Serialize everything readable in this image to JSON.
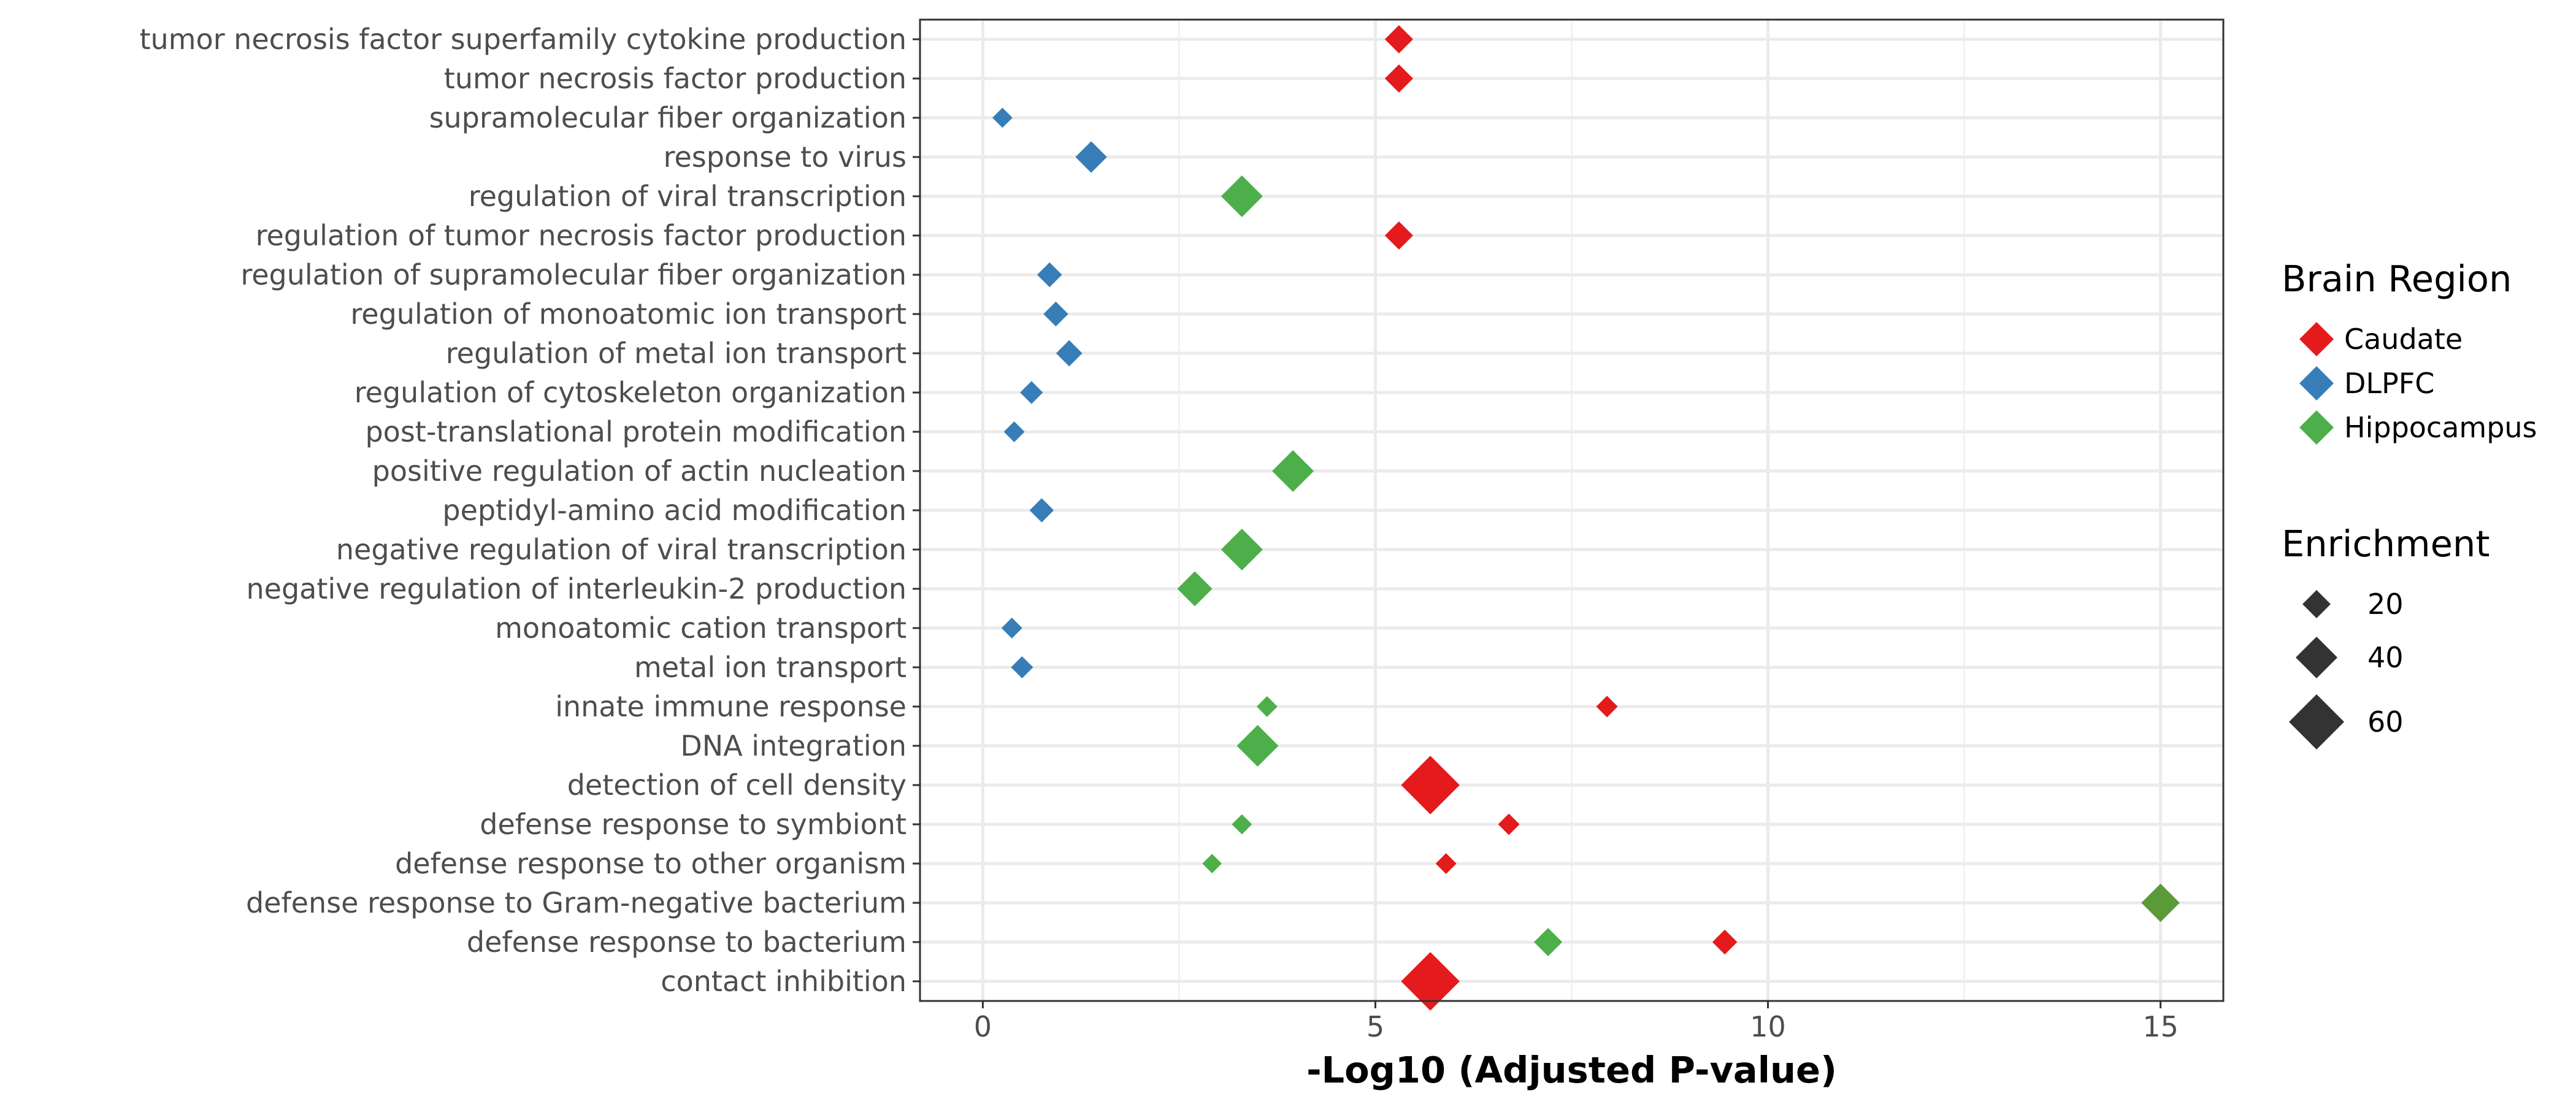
{
  "chart_data": {
    "type": "scatter",
    "title": "",
    "xlabel": "-Log10 (Adjusted P-value)",
    "ylabel": "",
    "xlim": [
      -0.8,
      15.8
    ],
    "xticks": [
      0,
      5,
      10,
      15
    ],
    "grid": true,
    "legend_position": "right",
    "categories": [
      "contact inhibition",
      "defense response to bacterium",
      "defense response to Gram-negative bacterium",
      "defense response to other organism",
      "defense response to symbiont",
      "detection of cell density",
      "DNA integration",
      "innate immune response",
      "metal ion transport",
      "monoatomic cation transport",
      "negative regulation of interleukin-2 production",
      "negative regulation of viral transcription",
      "peptidyl-amino acid modification",
      "positive regulation of actin nucleation",
      "post-translational protein modification",
      "regulation of cytoskeleton organization",
      "regulation of metal ion transport",
      "regulation of monoatomic ion transport",
      "regulation of supramolecular fiber organization",
      "regulation of tumor necrosis factor production",
      "regulation of viral transcription",
      "response to virus",
      "supramolecular fiber organization",
      "tumor necrosis factor production",
      "tumor necrosis factor superfamily cytokine production"
    ],
    "color_legend": {
      "title": "Brain Region",
      "entries": [
        {
          "label": "Caudate",
          "color": "#E41A1C"
        },
        {
          "label": "DLPFC",
          "color": "#377EB8"
        },
        {
          "label": "Hippocampus",
          "color": "#4DAF4A"
        }
      ]
    },
    "size_legend": {
      "title": "Enrichment",
      "entries": [
        {
          "label": "20",
          "value": 20
        },
        {
          "label": "40",
          "value": 40
        },
        {
          "label": "60",
          "value": 60
        }
      ]
    },
    "series": [
      {
        "name": "Caudate",
        "color": "#E41A1C",
        "points": [
          {
            "category": "tumor necrosis factor superfamily cytokine production",
            "x": 5.3,
            "enrichment": 20
          },
          {
            "category": "tumor necrosis factor production",
            "x": 5.3,
            "enrichment": 20
          },
          {
            "category": "regulation of tumor necrosis factor production",
            "x": 5.3,
            "enrichment": 20
          },
          {
            "category": "innate immune response",
            "x": 7.95,
            "enrichment": 10
          },
          {
            "category": "detection of cell density",
            "x": 5.7,
            "enrichment": 65
          },
          {
            "category": "defense response to symbiont",
            "x": 6.7,
            "enrichment": 10
          },
          {
            "category": "defense response to other organism",
            "x": 5.9,
            "enrichment": 9
          },
          {
            "category": "defense response to bacterium",
            "x": 9.45,
            "enrichment": 15
          },
          {
            "category": "contact inhibition",
            "x": 5.7,
            "enrichment": 65
          }
        ]
      },
      {
        "name": "DLPFC",
        "color": "#377EB8",
        "points": [
          {
            "category": "supramolecular fiber organization",
            "x": 0.25,
            "enrichment": 8
          },
          {
            "category": "response to virus",
            "x": 1.38,
            "enrichment": 25
          },
          {
            "category": "regulation of supramolecular fiber organization",
            "x": 0.85,
            "enrichment": 15
          },
          {
            "category": "regulation of monoatomic ion transport",
            "x": 0.93,
            "enrichment": 15
          },
          {
            "category": "regulation of metal ion transport",
            "x": 1.1,
            "enrichment": 17
          },
          {
            "category": "regulation of cytoskeleton organization",
            "x": 0.62,
            "enrichment": 12
          },
          {
            "category": "post-translational protein modification",
            "x": 0.4,
            "enrichment": 9
          },
          {
            "category": "peptidyl-amino acid modification",
            "x": 0.75,
            "enrichment": 14
          },
          {
            "category": "monoatomic cation transport",
            "x": 0.37,
            "enrichment": 9
          },
          {
            "category": "metal ion transport",
            "x": 0.5,
            "enrichment": 11
          }
        ]
      },
      {
        "name": "Hippocampus",
        "color": "#4DAF4A",
        "points": [
          {
            "category": "regulation of viral transcription",
            "x": 3.3,
            "enrichment": 40
          },
          {
            "category": "positive regulation of actin nucleation",
            "x": 3.95,
            "enrichment": 40
          },
          {
            "category": "negative regulation of viral transcription",
            "x": 3.3,
            "enrichment": 40
          },
          {
            "category": "negative regulation of interleukin-2 production",
            "x": 2.7,
            "enrichment": 30
          },
          {
            "category": "innate immune response",
            "x": 3.62,
            "enrichment": 9
          },
          {
            "category": "DNA integration",
            "x": 3.5,
            "enrichment": 40
          },
          {
            "category": "defense response to symbiont",
            "x": 3.3,
            "enrichment": 8
          },
          {
            "category": "defense response to other organism",
            "x": 2.92,
            "enrichment": 7
          },
          {
            "category": "defense response to Gram-negative bacterium",
            "x": 15.0,
            "enrichment": 35,
            "color": "#5A9A38"
          },
          {
            "category": "defense response to bacterium",
            "x": 7.2,
            "enrichment": 20
          }
        ]
      }
    ]
  }
}
